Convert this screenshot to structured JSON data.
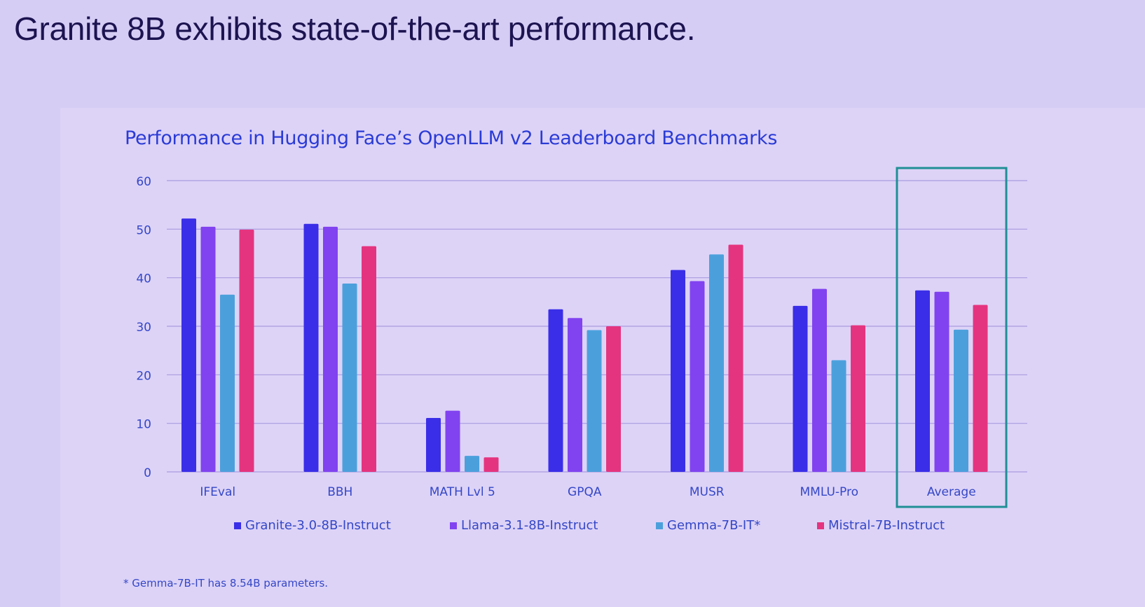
{
  "slide": {
    "title": "Granite 8B exhibits state-of-the-art performance."
  },
  "chart_data": {
    "type": "bar",
    "title": "Performance in Hugging Face’s OpenLLM v2 Leaderboard Benchmarks",
    "xlabel": "",
    "ylabel": "",
    "ylim": [
      0,
      60
    ],
    "yticks": [
      0,
      10,
      20,
      30,
      40,
      50,
      60
    ],
    "grid": true,
    "legend_position": "bottom",
    "categories": [
      "IFEval",
      "BBH",
      "MATH Lvl 5",
      "GPQA",
      "MUSR",
      "MMLU-Pro",
      "Average"
    ],
    "highlighted_category": "Average",
    "series": [
      {
        "name": "Granite-3.0-8B-Instruct",
        "color": "#3a2ee8",
        "values": [
          52.2,
          51.1,
          11.1,
          33.5,
          41.6,
          34.2,
          37.4
        ]
      },
      {
        "name": "Llama-3.1-8B-Instruct",
        "color": "#8143f0",
        "values": [
          50.5,
          50.5,
          12.6,
          31.7,
          39.3,
          37.7,
          37.1
        ]
      },
      {
        "name": "Gemma-7B-IT*",
        "color": "#4ba0dc",
        "values": [
          36.5,
          38.8,
          3.3,
          29.2,
          44.8,
          23.0,
          29.3
        ]
      },
      {
        "name": "Mistral-7B-Instruct",
        "color": "#e5347f",
        "values": [
          49.9,
          46.5,
          3.0,
          30.0,
          46.8,
          30.2,
          34.4
        ]
      }
    ],
    "footnote": "* Gemma-7B-IT has 8.54B parameters."
  },
  "colors": {
    "axis_text": "#3447c7",
    "gridline": "#a99be0",
    "highlight_box": "#1f8f96",
    "title": "#2a3bd6"
  }
}
